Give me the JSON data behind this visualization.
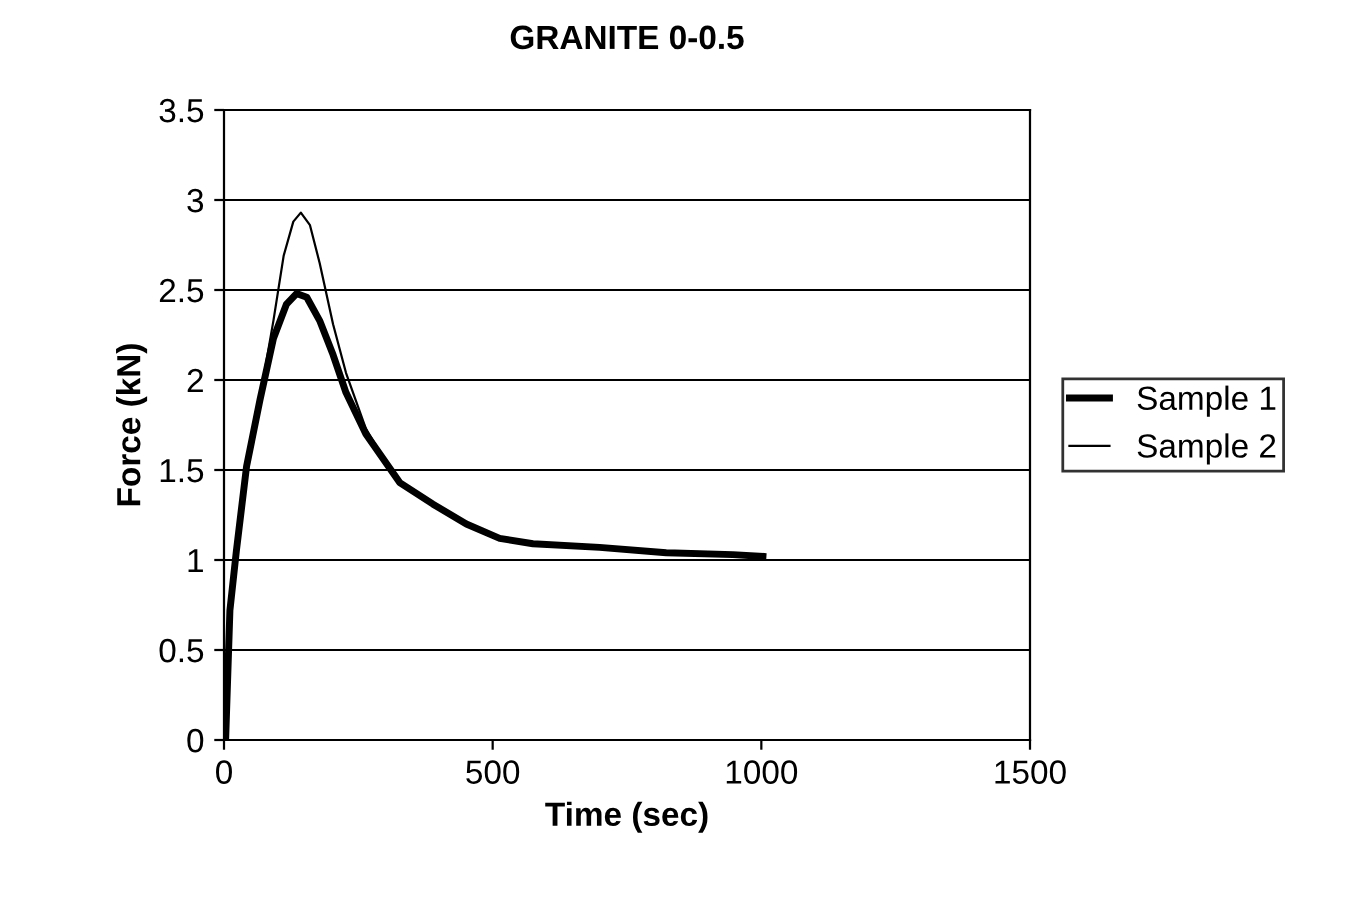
{
  "chart_data": {
    "type": "line",
    "title": "GRANITE 0-0.5",
    "xlabel": "Time (sec)",
    "ylabel": "Force (kN)",
    "xlim": [
      0,
      1500
    ],
    "xticks": [
      0,
      500,
      1000,
      1500
    ],
    "ylim": [
      0,
      3.5
    ],
    "yticks": [
      0,
      0.5,
      1,
      1.5,
      2,
      2.5,
      3,
      3.5
    ],
    "grid": "y",
    "legend": "right",
    "marker": "none",
    "line_style": "solid",
    "series": [
      {
        "name": "Sample 1",
        "color": "#000000",
        "x": [
          3,
          11,
          23,
          42,
          67,
          92,
          116,
          135,
          154,
          178,
          203,
          227,
          264,
          327,
          389,
          451,
          513,
          575,
          699,
          823,
          947,
          1003
        ],
        "values": [
          0,
          0.72,
          1.05,
          1.52,
          1.89,
          2.23,
          2.42,
          2.48,
          2.46,
          2.33,
          2.14,
          1.93,
          1.7,
          1.43,
          1.31,
          1.2,
          1.12,
          1.09,
          1.07,
          1.04,
          1.03,
          1.02
        ]
      },
      {
        "name": "Sample 2",
        "color": "#000000",
        "x": [
          3,
          11,
          23,
          42,
          67,
          92,
          111,
          129,
          143,
          160,
          178,
          203,
          227,
          264,
          290
        ],
        "values": [
          0,
          0.72,
          1.05,
          1.52,
          1.9,
          2.33,
          2.69,
          2.88,
          2.93,
          2.86,
          2.65,
          2.31,
          2.04,
          1.73,
          1.6
        ]
      }
    ]
  }
}
